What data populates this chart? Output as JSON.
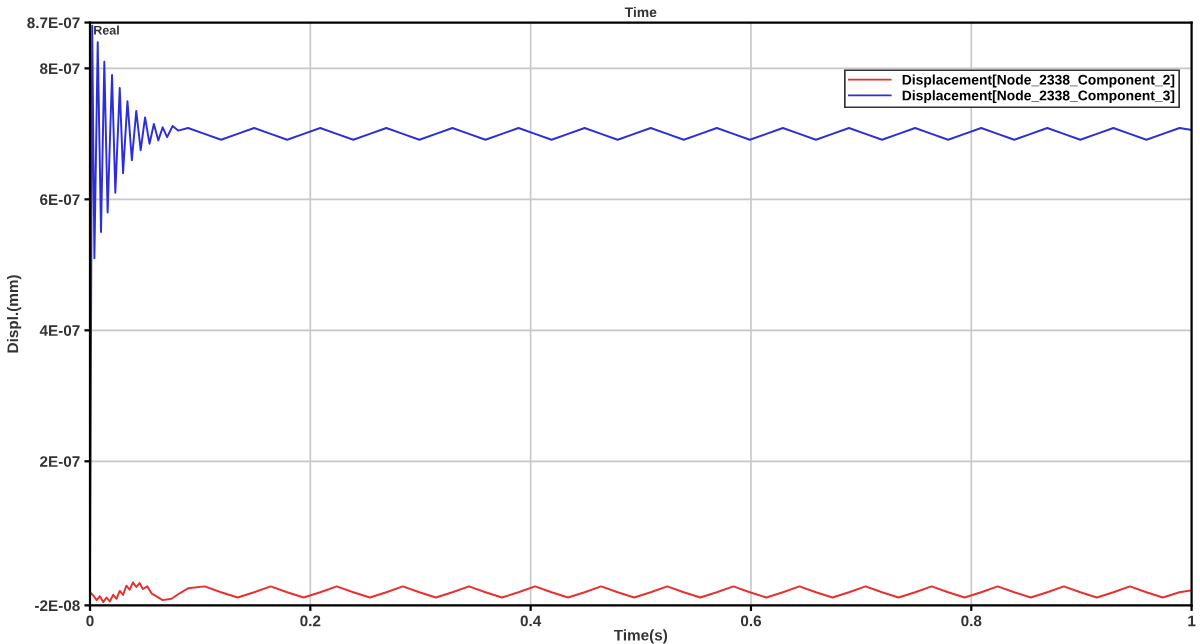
{
  "chart_data": {
    "type": "line",
    "title": "Time",
    "xlabel": "Time(s)",
    "ylabel": "Displ.(mm)",
    "annotations": [
      "Real"
    ],
    "xlim": [
      0,
      1
    ],
    "ylim": [
      -2e-08,
      8.7e-07
    ],
    "xticks": [
      0,
      0.2,
      0.4,
      0.6,
      0.8,
      1
    ],
    "yticks": [
      {
        "value": -2e-08,
        "label": "-2E-08"
      },
      {
        "value": 2e-07,
        "label": "2E-07"
      },
      {
        "value": 4e-07,
        "label": "4E-07"
      },
      {
        "value": 6e-07,
        "label": "6E-07"
      },
      {
        "value": 8e-07,
        "label": "8E-07"
      },
      {
        "value": 8.7e-07,
        "label": "8.7E-07"
      }
    ],
    "grid": true,
    "legend": "top right",
    "line_style": "solid",
    "marker": "none",
    "series": [
      {
        "name": "Displacement[Node_2338_Component_2]",
        "color": "#e8302e",
        "x": [
          0,
          0.003,
          0.006,
          0.009,
          0.012,
          0.015,
          0.018,
          0.021,
          0.024,
          0.027,
          0.03,
          0.033,
          0.036,
          0.039,
          0.042,
          0.045,
          0.048,
          0.052,
          0.056,
          0.06,
          0.066,
          0.074,
          0.08,
          0.089,
          0.104,
          0.119,
          0.134,
          0.149,
          0.164,
          0.179,
          0.194,
          0.209,
          0.224,
          0.239,
          0.254,
          0.269,
          0.284,
          0.299,
          0.314,
          0.329,
          0.344,
          0.359,
          0.374,
          0.389,
          0.404,
          0.419,
          0.434,
          0.449,
          0.464,
          0.479,
          0.494,
          0.509,
          0.524,
          0.539,
          0.554,
          0.569,
          0.584,
          0.599,
          0.614,
          0.629,
          0.644,
          0.659,
          0.674,
          0.689,
          0.704,
          0.719,
          0.734,
          0.749,
          0.764,
          0.779,
          0.794,
          0.809,
          0.824,
          0.839,
          0.854,
          0.869,
          0.884,
          0.899,
          0.914,
          0.929,
          0.944,
          0.959,
          0.974,
          0.989,
          1.0
        ],
        "values": [
          0,
          -5e-09,
          -1.2e-08,
          -6e-09,
          -1.5e-08,
          -8e-09,
          -1.4e-08,
          -4e-09,
          -1e-08,
          2e-09,
          -4e-09,
          1e-08,
          4e-09,
          1.5e-08,
          8e-09,
          1.4e-08,
          5e-09,
          9e-09,
          -2e-09,
          -6e-09,
          -1.2e-08,
          -1e-08,
          -3e-09,
          6e-09,
          9e-09,
          0,
          -8e-09,
          0,
          9e-09,
          0,
          -8e-09,
          0,
          9e-09,
          0,
          -8e-09,
          0,
          9e-09,
          0,
          -8e-09,
          0,
          9e-09,
          0,
          -8e-09,
          0,
          9e-09,
          0,
          -8e-09,
          0,
          9e-09,
          0,
          -8e-09,
          0,
          9e-09,
          0,
          -8e-09,
          0,
          9e-09,
          0,
          -8e-09,
          0,
          9e-09,
          0,
          -8e-09,
          0,
          9e-09,
          0,
          -8e-09,
          0,
          9e-09,
          0,
          -8e-09,
          0,
          9e-09,
          0,
          -8e-09,
          0,
          9e-09,
          0,
          -8e-09,
          0,
          9e-09,
          0,
          -8e-09,
          0,
          3e-09
        ]
      },
      {
        "name": "Displacement[Node_2338_Component_3]",
        "color": "#2e2ed8",
        "x": [
          0,
          0.002,
          0.004,
          0.007,
          0.01,
          0.013,
          0.016,
          0.02,
          0.023,
          0.027,
          0.03,
          0.034,
          0.038,
          0.042,
          0.046,
          0.05,
          0.054,
          0.058,
          0.062,
          0.066,
          0.07,
          0.075,
          0.08,
          0.089,
          0.104,
          0.119,
          0.134,
          0.149,
          0.164,
          0.179,
          0.194,
          0.209,
          0.224,
          0.239,
          0.254,
          0.269,
          0.284,
          0.299,
          0.314,
          0.329,
          0.344,
          0.359,
          0.374,
          0.389,
          0.404,
          0.419,
          0.434,
          0.449,
          0.464,
          0.479,
          0.494,
          0.509,
          0.524,
          0.539,
          0.554,
          0.569,
          0.584,
          0.599,
          0.614,
          0.629,
          0.644,
          0.659,
          0.674,
          0.689,
          0.704,
          0.719,
          0.734,
          0.749,
          0.764,
          0.779,
          0.794,
          0.809,
          0.824,
          0.839,
          0.854,
          0.869,
          0.884,
          0.899,
          0.914,
          0.929,
          0.944,
          0.959,
          0.974,
          0.989,
          1.0
        ],
        "values": [
          0,
          8.65e-07,
          5.1e-07,
          8.4e-07,
          5.5e-07,
          8.1e-07,
          5.8e-07,
          7.9e-07,
          6.1e-07,
          7.7e-07,
          6.4e-07,
          7.5e-07,
          6.6e-07,
          7.35e-07,
          6.75e-07,
          7.25e-07,
          6.85e-07,
          7.15e-07,
          6.9e-07,
          7.1e-07,
          6.95e-07,
          7.12e-07,
          7.05e-07,
          7.09e-07,
          7e-07,
          6.91e-07,
          7e-07,
          7.09e-07,
          7e-07,
          6.91e-07,
          7e-07,
          7.09e-07,
          7e-07,
          6.91e-07,
          7e-07,
          7.09e-07,
          7e-07,
          6.91e-07,
          7e-07,
          7.09e-07,
          7e-07,
          6.91e-07,
          7e-07,
          7.09e-07,
          7e-07,
          6.91e-07,
          7e-07,
          7.09e-07,
          7e-07,
          6.91e-07,
          7e-07,
          7.09e-07,
          7e-07,
          6.91e-07,
          7e-07,
          7.09e-07,
          7e-07,
          6.91e-07,
          7e-07,
          7.09e-07,
          7e-07,
          6.91e-07,
          7e-07,
          7.09e-07,
          7e-07,
          6.91e-07,
          7e-07,
          7.09e-07,
          7e-07,
          6.91e-07,
          7e-07,
          7.09e-07,
          7e-07,
          6.91e-07,
          7e-07,
          7.09e-07,
          7e-07,
          6.91e-07,
          7e-07,
          7.09e-07,
          7e-07,
          6.91e-07,
          7e-07,
          7.09e-07,
          7.06e-07
        ]
      }
    ]
  }
}
